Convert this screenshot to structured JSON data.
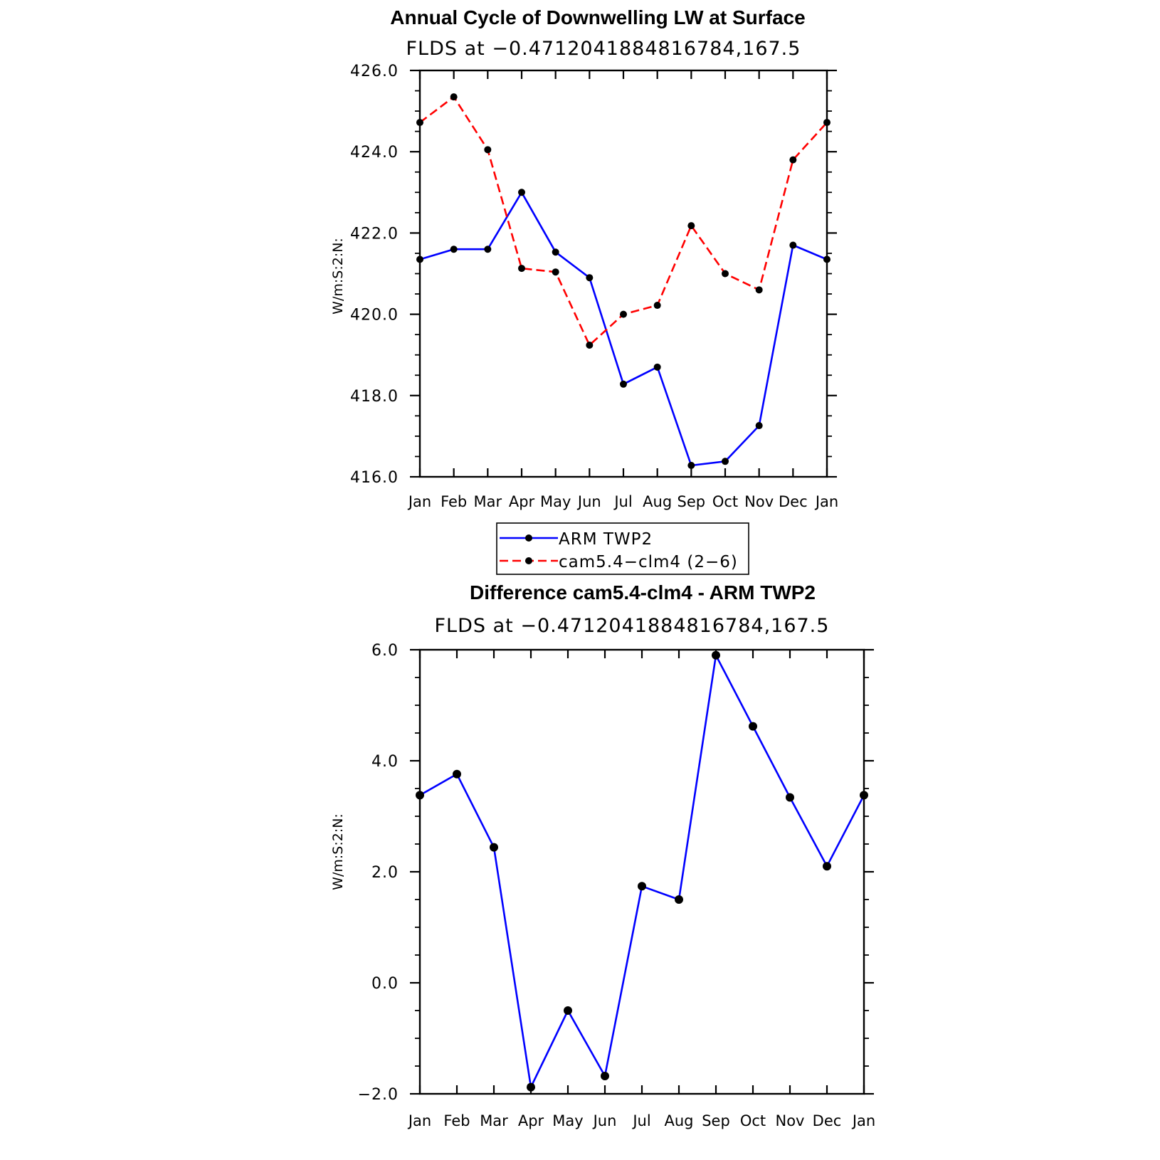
{
  "chart_data": [
    {
      "type": "line",
      "title": "Annual Cycle of Downwelling LW at Surface",
      "subtitle": "FLDS at −0.4712041884816784,167.5",
      "xlabel": "",
      "ylabel": "W/m:S:2:N:",
      "categories": [
        "Jan",
        "Feb",
        "Mar",
        "Apr",
        "May",
        "Jun",
        "Jul",
        "Aug",
        "Sep",
        "Oct",
        "Nov",
        "Dec",
        "Jan"
      ],
      "ylim": [
        416.0,
        426.0
      ],
      "yticks": [
        416.0,
        418.0,
        420.0,
        422.0,
        424.0,
        426.0
      ],
      "ytick_labels": [
        "416.0",
        "418.0",
        "420.0",
        "422.0",
        "424.0",
        "426.0"
      ],
      "grid": false,
      "series": [
        {
          "name": "ARM TWP2",
          "color": "#0000ff",
          "dash": "solid",
          "values": [
            421.35,
            421.6,
            421.6,
            423.0,
            421.53,
            420.9,
            418.28,
            418.7,
            416.28,
            416.38,
            417.26,
            421.7,
            421.35
          ]
        },
        {
          "name": "cam5.4−clm4 (2−6)",
          "color": "#ff0000",
          "dash": "dashed",
          "values": [
            424.72,
            425.35,
            424.05,
            421.13,
            421.04,
            419.24,
            420.0,
            420.22,
            422.18,
            421.0,
            420.6,
            423.8,
            424.72
          ]
        }
      ],
      "legend": {
        "placement": "below-plot",
        "entries": [
          "ARM TWP2",
          "cam5.4−clm4 (2−6)"
        ]
      }
    },
    {
      "type": "line",
      "title": "Difference cam5.4-clm4 - ARM TWP2",
      "subtitle": "FLDS at −0.4712041884816784,167.5",
      "xlabel": "",
      "ylabel": "W/m:S:2:N:",
      "categories": [
        "Jan",
        "Feb",
        "Mar",
        "Apr",
        "May",
        "Jun",
        "Jul",
        "Aug",
        "Sep",
        "Oct",
        "Nov",
        "Dec",
        "Jan"
      ],
      "ylim": [
        -2.0,
        6.0
      ],
      "yticks": [
        -2.0,
        0.0,
        2.0,
        4.0,
        6.0
      ],
      "ytick_labels": [
        "−2.0",
        "0.0",
        "2.0",
        "4.0",
        "6.0"
      ],
      "grid": false,
      "series": [
        {
          "name": "",
          "color": "#0000ff",
          "dash": "solid",
          "values": [
            3.38,
            3.76,
            2.44,
            -1.88,
            -0.5,
            -1.68,
            1.74,
            1.5,
            5.9,
            4.62,
            3.34,
            2.1,
            3.38
          ]
        }
      ]
    }
  ]
}
